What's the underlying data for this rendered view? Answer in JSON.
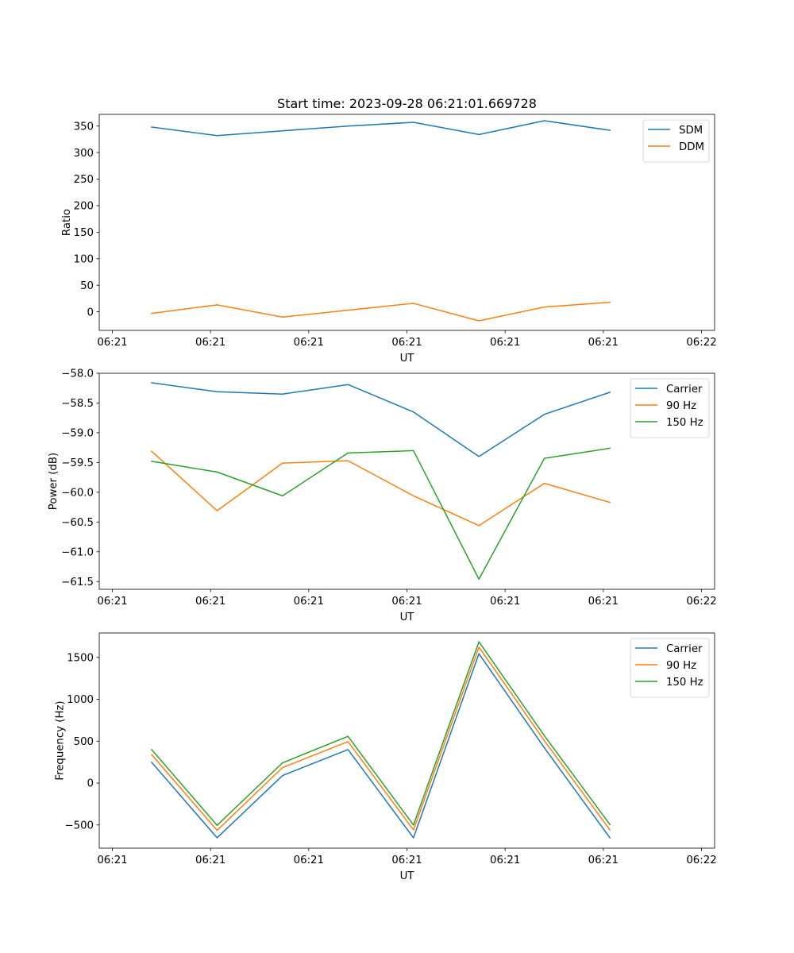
{
  "title": "Start time: 2023-09-28 06:21:01.669728",
  "chart_data": [
    {
      "type": "line",
      "title": "Start time: 2023-09-28 06:21:01.669728",
      "xlabel": "UT",
      "ylabel": "Ratio",
      "x": [
        1,
        2,
        3,
        4,
        5,
        6,
        7,
        8
      ],
      "xlim": [
        0.2,
        9.6
      ],
      "x_ticks": [
        0.4,
        1.9,
        3.4,
        4.9,
        6.4,
        7.9,
        9.4
      ],
      "x_tick_labels": [
        "06:21",
        "06:21",
        "06:21",
        "06:21",
        "06:21",
        "06:21",
        "06:22"
      ],
      "ylim": [
        -35,
        372
      ],
      "y_ticks": [
        0,
        50,
        100,
        150,
        200,
        250,
        300,
        350
      ],
      "y_tick_labels": [
        "0",
        "50",
        "100",
        "150",
        "200",
        "250",
        "300",
        "350"
      ],
      "legend": "top-right",
      "grid": false,
      "series": [
        {
          "name": "SDM",
          "color": "#1f77b4",
          "values": [
            348,
            332,
            341,
            350,
            357,
            334,
            360,
            342
          ]
        },
        {
          "name": "DDM",
          "color": "#ff7f0e",
          "values": [
            -3,
            13,
            -10,
            3,
            16,
            -17,
            9,
            18
          ]
        }
      ]
    },
    {
      "type": "line",
      "title": "",
      "xlabel": "UT",
      "ylabel": "Power (dB)",
      "x": [
        1,
        2,
        3,
        4,
        5,
        6,
        7,
        8
      ],
      "xlim": [
        0.2,
        9.6
      ],
      "x_ticks": [
        0.4,
        1.9,
        3.4,
        4.9,
        6.4,
        7.9,
        9.4
      ],
      "x_tick_labels": [
        "06:21",
        "06:21",
        "06:21",
        "06:21",
        "06:21",
        "06:21",
        "06:22"
      ],
      "ylim": [
        -61.63,
        -58.0
      ],
      "y_ticks": [
        -58.0,
        -58.5,
        -59.0,
        -59.5,
        -60.0,
        -60.5,
        -61.0,
        -61.5
      ],
      "y_tick_labels": [
        "−58.0",
        "−58.5",
        "−59.0",
        "−59.5",
        "−60.0",
        "−60.5",
        "−61.0",
        "−61.5"
      ],
      "legend": "top-right",
      "grid": false,
      "series": [
        {
          "name": "Carrier",
          "color": "#1f77b4",
          "values": [
            -58.16,
            -58.31,
            -58.35,
            -58.19,
            -58.65,
            -59.4,
            -58.69,
            -58.32
          ]
        },
        {
          "name": "90 Hz",
          "color": "#ff7f0e",
          "values": [
            -59.31,
            -60.31,
            -59.51,
            -59.47,
            -60.06,
            -60.56,
            -59.85,
            -60.17
          ]
        },
        {
          "name": "150 Hz",
          "color": "#2ca02c",
          "values": [
            -59.48,
            -59.66,
            -60.06,
            -59.34,
            -59.3,
            -61.46,
            -59.43,
            -59.26
          ]
        }
      ]
    },
    {
      "type": "line",
      "title": "",
      "xlabel": "UT",
      "ylabel": "Frequency (Hz)",
      "x": [
        1,
        2,
        3,
        4,
        5,
        6,
        7,
        8
      ],
      "xlim": [
        0.2,
        9.6
      ],
      "x_ticks": [
        0.4,
        1.9,
        3.4,
        4.9,
        6.4,
        7.9,
        9.4
      ],
      "x_tick_labels": [
        "06:21",
        "06:21",
        "06:21",
        "06:21",
        "06:21",
        "06:21",
        "06:22"
      ],
      "ylim": [
        -777,
        1792
      ],
      "y_ticks": [
        -500,
        0,
        500,
        1000,
        1500
      ],
      "y_tick_labels": [
        "−500",
        "0",
        "500",
        "1000",
        "1500"
      ],
      "legend": "top-right",
      "grid": false,
      "series": [
        {
          "name": "Carrier",
          "color": "#1f77b4",
          "values": [
            248,
            -653,
            90,
            400,
            -653,
            1545,
            420,
            -653
          ]
        },
        {
          "name": "90 Hz",
          "color": "#ff7f0e",
          "values": [
            340,
            -564,
            185,
            495,
            -560,
            1623,
            505,
            -558
          ]
        },
        {
          "name": "150 Hz",
          "color": "#2ca02c",
          "values": [
            400,
            -504,
            242,
            558,
            -501,
            1687,
            565,
            -494
          ]
        }
      ]
    }
  ]
}
